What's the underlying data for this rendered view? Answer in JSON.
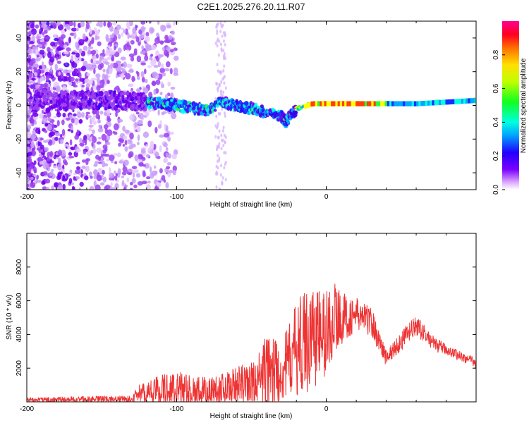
{
  "title": "C2E1.2025.276.20.11.R07",
  "chart_data": [
    {
      "type": "heatmap",
      "name": "spectrogram",
      "xlabel": "Height of straight line (km)",
      "ylabel": "Frequency (Hz)",
      "xlim": [
        -200,
        100
      ],
      "ylim": [
        -50,
        50
      ],
      "xticks": [
        "-200",
        "-100",
        "0"
      ],
      "yticks": [
        "-40",
        "-20",
        "0",
        "20",
        "40"
      ],
      "ridge": {
        "x": [
          -200,
          -180,
          -160,
          -140,
          -120,
          -100,
          -80,
          -70,
          -60,
          -50,
          -40,
          -30,
          -27,
          -20,
          -10,
          0,
          10,
          20,
          40,
          60,
          80,
          100
        ],
        "y": [
          3,
          3,
          3,
          3,
          2,
          0,
          -3,
          2,
          0,
          -2,
          -4,
          -6,
          -10,
          -2,
          1,
          1,
          1,
          1,
          1,
          1,
          2,
          3
        ]
      },
      "colorbar": {
        "label": "Normalized spectral amplitude",
        "range": [
          0,
          1
        ],
        "ticks": [
          "0.0",
          "0.2",
          "0.4",
          "0.6",
          "0.8"
        ]
      }
    },
    {
      "type": "line",
      "name": "snr",
      "xlabel": "Height of straight line (km)",
      "ylabel": "SNR (10 * v/v)",
      "xlim": [
        -200,
        100
      ],
      "ylim": [
        0,
        10000
      ],
      "xticks": [
        "-200",
        "-100",
        "0"
      ],
      "yticks": [
        "2000",
        "4000",
        "6000",
        "8000"
      ],
      "color": "#ee3333",
      "envelope": {
        "x": [
          -200,
          -150,
          -130,
          -125,
          -110,
          -100,
          -90,
          -80,
          -70,
          -60,
          -50,
          -45,
          -40,
          -35,
          -30,
          -25,
          -20,
          -15,
          -10,
          -5,
          0,
          5,
          10,
          15,
          20,
          25,
          30,
          35,
          40,
          45,
          50,
          55,
          60,
          65,
          70,
          75,
          80,
          85,
          90,
          95,
          100
        ],
        "base": [
          100,
          150,
          150,
          500,
          700,
          700,
          500,
          600,
          800,
          1000,
          1100,
          1400,
          1600,
          1800,
          1800,
          2400,
          3200,
          3500,
          4000,
          4000,
          4000,
          5000,
          5000,
          5000,
          5200,
          5000,
          4800,
          3700,
          2600,
          3100,
          3600,
          4100,
          4500,
          4100,
          3600,
          3300,
          3100,
          2900,
          2700,
          2500,
          2300
        ],
        "amp": [
          150,
          200,
          200,
          500,
          1000,
          1200,
          1000,
          900,
          900,
          1100,
          1300,
          1600,
          2500,
          2400,
          1800,
          2200,
          2800,
          3000,
          3500,
          2800,
          2800,
          2200,
          1600,
          1200,
          1000,
          900,
          900,
          700,
          500,
          500,
          600,
          600,
          600,
          500,
          400,
          400,
          300,
          300,
          300,
          300,
          300
        ]
      }
    }
  ]
}
